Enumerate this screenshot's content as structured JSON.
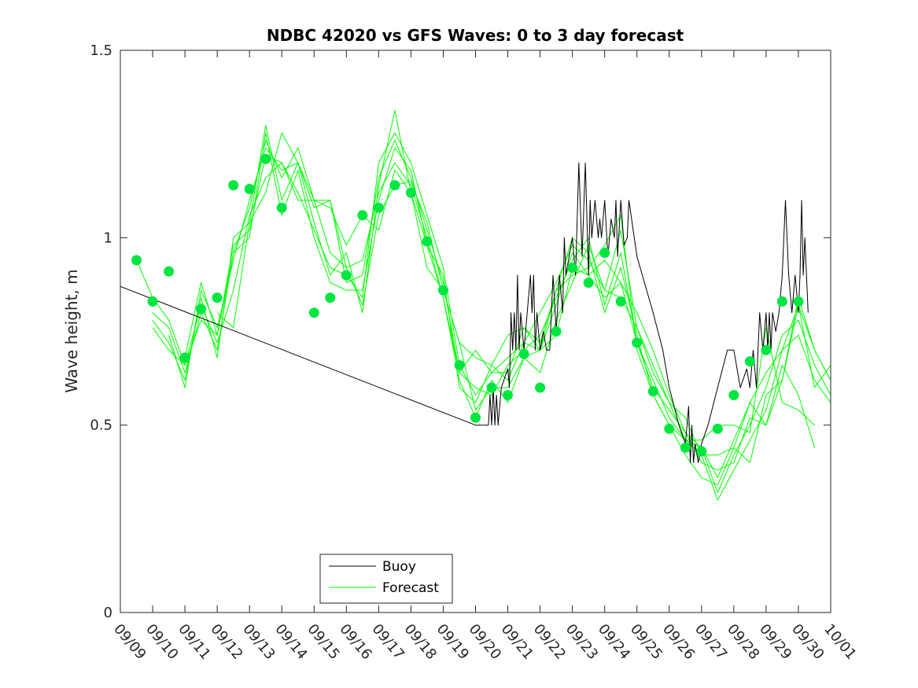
{
  "chart_data": {
    "type": "line",
    "title": "NDBC 42020 vs GFS Waves: 0 to 3 day forecast",
    "xlabel": "",
    "ylabel": "Wave height, m",
    "ylim": [
      0,
      1.5
    ],
    "xlim": [
      0,
      22
    ],
    "yticks": [
      0,
      0.5,
      1,
      1.5
    ],
    "ytick_labels": [
      "0",
      "0.5",
      "1",
      "1.5"
    ],
    "xtick_labels": [
      "09/09",
      "09/10",
      "09/11",
      "09/12",
      "09/13",
      "09/14",
      "09/15",
      "09/16",
      "09/17",
      "09/18",
      "09/19",
      "09/20",
      "09/21",
      "09/22",
      "09/23",
      "09/24",
      "09/25",
      "09/26",
      "09/27",
      "09/28",
      "09/29",
      "09/30",
      "10/01"
    ],
    "grid": false,
    "legend": {
      "position": "bottom-center",
      "entries": [
        {
          "label": "Buoy",
          "color": "#000000"
        },
        {
          "label": "Forecast",
          "color": "#00ff00"
        }
      ]
    },
    "colors": {
      "buoy": "#000000",
      "forecast": "#00ff00",
      "marker": "#00e640"
    },
    "series": [
      {
        "name": "Buoy",
        "x": [
          0,
          11,
          11.3,
          11.4,
          11.45,
          11.5,
          11.55,
          11.6,
          11.65,
          11.7,
          11.8,
          12,
          12.05,
          12.1,
          12.15,
          12.2,
          12.25,
          12.3,
          12.35,
          12.4,
          12.5,
          12.7,
          12.75,
          12.8,
          12.85,
          12.9,
          13.0,
          13.1,
          13.2,
          13.3,
          13.4,
          13.5,
          13.6,
          13.7,
          13.75,
          13.8,
          14.0,
          14.1,
          14.2,
          14.3,
          14.4,
          14.5,
          14.55,
          14.6,
          14.7,
          14.8,
          14.85,
          14.9,
          15.0,
          15.1,
          15.2,
          15.3,
          15.35,
          15.4,
          15.5,
          15.6,
          15.7,
          15.75,
          16.0,
          16.5,
          16.8,
          17.0,
          17.3,
          17.5,
          17.6,
          17.65,
          17.7,
          17.75,
          17.8,
          17.9,
          18.0,
          18.2,
          18.5,
          18.8,
          19.0,
          19.2,
          19.4,
          19.5,
          19.6,
          19.7,
          19.8,
          19.9,
          20.0,
          20.05,
          20.1,
          20.15,
          20.2,
          20.3,
          20.4,
          20.5,
          20.6,
          20.7,
          20.8,
          20.9,
          21.0,
          21.05,
          21.1,
          21.15,
          21.2,
          21.3
        ],
        "y": [
          0.87,
          0.5,
          0.5,
          0.5,
          0.58,
          0.5,
          0.6,
          0.5,
          0.58,
          0.5,
          0.6,
          0.65,
          0.6,
          0.8,
          0.7,
          0.8,
          0.7,
          0.9,
          0.7,
          0.8,
          0.7,
          0.9,
          0.8,
          0.9,
          0.7,
          0.8,
          0.7,
          0.75,
          0.7,
          0.7,
          0.9,
          0.75,
          0.9,
          0.8,
          1.0,
          0.9,
          1.0,
          0.9,
          1.2,
          0.95,
          1.2,
          0.9,
          1.1,
          1.0,
          1.1,
          1.0,
          1.05,
          1.0,
          1.1,
          0.95,
          1.05,
          1.0,
          1.1,
          0.95,
          1.1,
          0.98,
          1.0,
          1.1,
          0.95,
          0.8,
          0.7,
          0.6,
          0.5,
          0.45,
          0.55,
          0.4,
          0.5,
          0.4,
          0.45,
          0.4,
          0.45,
          0.5,
          0.6,
          0.7,
          0.7,
          0.6,
          0.65,
          0.6,
          0.7,
          0.6,
          0.8,
          0.7,
          0.8,
          0.7,
          0.8,
          0.7,
          0.8,
          0.75,
          0.8,
          0.9,
          1.1,
          0.9,
          0.8,
          0.9,
          0.8,
          0.9,
          1.1,
          0.9,
          1.0,
          0.8
        ]
      },
      {
        "name": "Forecast 1",
        "x": [
          0.5,
          1,
          1.5,
          2,
          2.5,
          3,
          3.5,
          4,
          4.5,
          5,
          5.5,
          6,
          6.5,
          7,
          7.5,
          8,
          8.5,
          9,
          9.5,
          10,
          10.5,
          11,
          11.5,
          12,
          12.5,
          13,
          13.5,
          14,
          14.5,
          15,
          15.5,
          16,
          16.5,
          17,
          17.5,
          18,
          18.5,
          19,
          19.5,
          20,
          20.5,
          21,
          21.5,
          22
        ],
        "y": [
          0.94,
          0.84,
          0.78,
          0.66,
          0.82,
          0.72,
          0.86,
          1.06,
          1.16,
          1.2,
          1.1,
          1.1,
          0.96,
          0.92,
          0.82,
          1.06,
          1.14,
          1.15,
          1.04,
          0.86,
          0.72,
          0.54,
          0.6,
          0.6,
          0.68,
          0.7,
          0.74,
          0.92,
          0.9,
          0.94,
          0.88,
          0.8,
          0.7,
          0.58,
          0.48,
          0.44,
          0.36,
          0.46,
          0.56,
          0.64,
          0.7,
          0.82,
          0.7,
          0.62
        ]
      },
      {
        "name": "Forecast 2",
        "x": [
          1,
          1.5,
          2,
          2.5,
          3,
          3.5,
          4,
          4.5,
          5,
          5.5,
          6,
          6.5,
          7,
          7.5,
          8,
          8.5,
          9,
          9.5,
          10,
          10.5,
          11,
          11.5,
          12,
          12.5,
          13,
          13.5,
          14,
          14.5,
          15,
          15.5,
          16,
          16.5,
          17,
          17.5,
          18,
          18.5,
          19,
          19.5,
          20,
          20.5,
          21,
          21.5,
          22
        ],
        "y": [
          0.8,
          0.76,
          0.64,
          0.8,
          0.7,
          0.96,
          1.0,
          1.28,
          1.06,
          1.18,
          1.0,
          0.88,
          0.86,
          0.86,
          1.1,
          1.24,
          1.18,
          0.98,
          0.84,
          0.62,
          0.52,
          0.62,
          0.56,
          0.68,
          0.64,
          0.78,
          0.88,
          0.98,
          0.86,
          0.84,
          0.76,
          0.64,
          0.56,
          0.46,
          0.44,
          0.32,
          0.42,
          0.5,
          0.6,
          0.74,
          0.78,
          0.66,
          0.58
        ]
      },
      {
        "name": "Forecast 3",
        "x": [
          1,
          1.5,
          2,
          2.5,
          3,
          3.5,
          4,
          4.5,
          5,
          5.5,
          6,
          6.5,
          7,
          7.5,
          8,
          8.5,
          9,
          9.5,
          10,
          10.5,
          11,
          11.5,
          12,
          12.5,
          13,
          13.5,
          14,
          14.5,
          15,
          15.5,
          16,
          16.5,
          17,
          17.5,
          18,
          18.5,
          19,
          19.5,
          20,
          20.5,
          21,
          21.5,
          22
        ],
        "y": [
          0.78,
          0.72,
          0.62,
          0.84,
          0.68,
          1.0,
          1.04,
          1.3,
          1.1,
          1.2,
          1.04,
          0.9,
          0.96,
          0.8,
          1.14,
          1.34,
          1.12,
          0.98,
          0.9,
          0.6,
          0.56,
          0.66,
          0.62,
          0.72,
          0.7,
          0.82,
          0.96,
          0.9,
          0.84,
          0.88,
          0.72,
          0.62,
          0.52,
          0.46,
          0.42,
          0.3,
          0.38,
          0.46,
          0.54,
          0.7,
          0.74,
          0.62,
          0.56
        ]
      },
      {
        "name": "Forecast 4",
        "x": [
          1,
          1.5,
          2,
          2.5,
          3,
          3.5,
          4,
          4.5,
          5,
          5.5,
          6,
          6.5,
          7,
          7.5,
          8,
          8.5,
          9,
          9.5,
          10,
          10.5,
          11,
          11.5,
          12,
          12.5,
          13,
          13.5,
          14,
          14.5,
          15,
          15.5,
          16,
          16.5,
          17,
          17.5,
          18,
          18.5,
          19,
          19.5,
          20,
          20.5,
          21,
          21.5,
          22
        ],
        "y": [
          0.76,
          0.7,
          0.66,
          0.78,
          0.74,
          0.98,
          1.02,
          1.22,
          1.2,
          1.12,
          1.02,
          0.92,
          0.9,
          0.84,
          1.2,
          1.28,
          1.2,
          1.06,
          0.92,
          0.66,
          0.58,
          0.64,
          0.64,
          0.76,
          0.72,
          0.86,
          1.0,
          0.96,
          0.8,
          0.92,
          0.74,
          0.58,
          0.5,
          0.42,
          0.36,
          0.34,
          0.44,
          0.4,
          0.58,
          0.62,
          0.84,
          0.7,
          0.62
        ]
      },
      {
        "name": "Forecast 5",
        "x": [
          1.5,
          2,
          2.5,
          3,
          3.5,
          4,
          4.5,
          5,
          5.5,
          6,
          6.5,
          7,
          7.5,
          8,
          8.5,
          9,
          9.5,
          10,
          10.5,
          11,
          11.5,
          12,
          12.5,
          13,
          13.5,
          14,
          14.5,
          15,
          15.5,
          16,
          16.5,
          17,
          17.5,
          18,
          18.5,
          19,
          19.5,
          20,
          20.5,
          21,
          21.5,
          22
        ],
        "y": [
          0.74,
          0.6,
          0.86,
          0.76,
          0.94,
          1.1,
          1.24,
          1.18,
          1.2,
          1.08,
          1.1,
          0.88,
          0.9,
          1.16,
          1.26,
          1.16,
          1.02,
          0.88,
          0.64,
          0.6,
          0.58,
          0.66,
          0.7,
          0.74,
          0.84,
          0.94,
          1.0,
          0.82,
          0.96,
          0.72,
          0.6,
          0.54,
          0.48,
          0.4,
          0.38,
          0.4,
          0.52,
          0.5,
          0.62,
          0.82,
          0.6,
          0.66
        ]
      },
      {
        "name": "Forecast 6",
        "x": [
          2,
          2.5,
          3,
          3.5,
          4,
          4.5,
          5,
          5.5,
          6,
          6.5,
          7,
          7.5,
          8,
          8.5,
          9,
          9.5,
          10,
          10.5,
          11,
          11.5,
          12,
          12.5,
          13,
          13.5,
          14,
          14.5,
          15,
          15.5,
          16,
          16.5,
          17,
          17.5,
          18,
          18.5,
          19,
          19.5,
          20,
          20.5,
          21,
          21.5
        ],
        "y": [
          0.68,
          0.88,
          0.74,
          0.96,
          1.08,
          1.26,
          1.16,
          1.24,
          1.1,
          1.1,
          0.92,
          0.94,
          1.12,
          1.2,
          1.14,
          1.0,
          0.84,
          0.64,
          0.7,
          0.64,
          0.68,
          0.72,
          0.8,
          0.88,
          0.98,
          0.94,
          0.86,
          1.02,
          0.76,
          0.66,
          0.56,
          0.52,
          0.42,
          0.42,
          0.44,
          0.56,
          0.5,
          0.66,
          0.58,
          0.44
        ]
      },
      {
        "name": "Forecast 7",
        "x": [
          3,
          3.5,
          4,
          4.5,
          5,
          5.5,
          6,
          6.5,
          7,
          7.5,
          8,
          8.5,
          9,
          9.5,
          10,
          10.5,
          11,
          11.5,
          12,
          12.5,
          13,
          13.5,
          14,
          14.5,
          15,
          15.5,
          16,
          16.5,
          17,
          17.5,
          18,
          18.5,
          19,
          19.5,
          20,
          20.5,
          21,
          21.5
        ],
        "y": [
          0.8,
          0.76,
          1.04,
          1.12,
          1.28,
          1.2,
          1.1,
          1.08,
          0.98,
          1.06,
          1.02,
          1.18,
          1.12,
          0.92,
          0.86,
          0.72,
          0.68,
          0.66,
          0.74,
          0.76,
          0.7,
          0.86,
          0.9,
          0.92,
          0.98,
          1.06,
          0.7,
          0.58,
          0.5,
          0.46,
          0.46,
          0.5,
          0.5,
          0.48,
          0.76,
          0.56,
          0.54,
          0.5
        ]
      }
    ],
    "markers": {
      "name": "Forecast (analysis points)",
      "x": [
        0.5,
        1,
        1.5,
        2,
        2.5,
        3,
        3.5,
        4,
        4.5,
        5,
        6,
        6.5,
        7,
        7.5,
        8,
        8.5,
        9,
        9.5,
        10,
        10.5,
        11,
        11.5,
        12,
        12.5,
        13,
        13.5,
        14,
        14.5,
        15,
        15.5,
        16,
        16.5,
        17,
        17.5,
        18,
        18.5,
        19,
        19.5,
        20,
        20.5,
        21
      ],
      "y": [
        0.94,
        0.83,
        0.91,
        0.68,
        0.81,
        0.84,
        1.14,
        1.13,
        1.21,
        1.08,
        0.8,
        0.84,
        0.9,
        1.06,
        1.08,
        1.14,
        1.12,
        0.99,
        0.86,
        0.66,
        0.52,
        0.6,
        0.58,
        0.69,
        0.6,
        0.75,
        0.92,
        0.88,
        0.96,
        0.83,
        0.72,
        0.59,
        0.49,
        0.44,
        0.43,
        0.49,
        0.58,
        0.67,
        0.7,
        0.83,
        0.83
      ]
    }
  }
}
